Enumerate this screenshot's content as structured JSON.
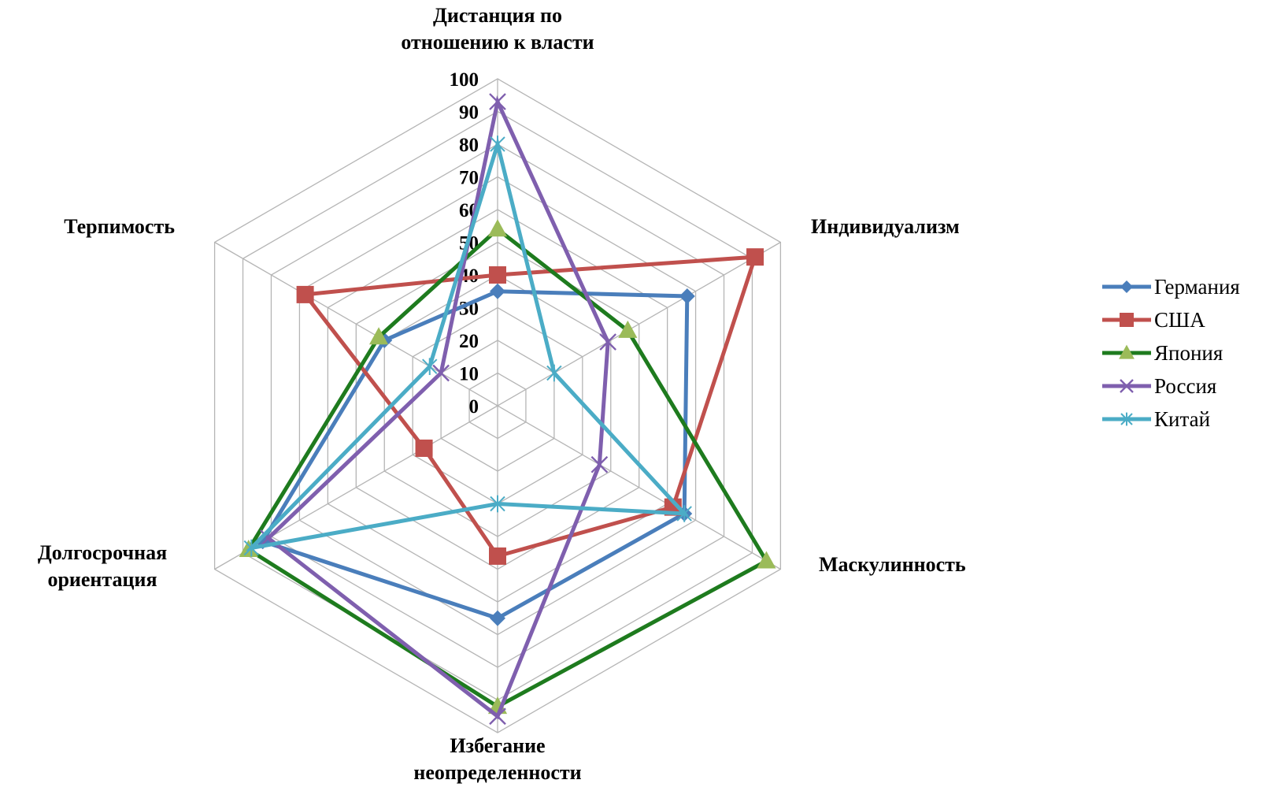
{
  "chart_data": {
    "type": "radar",
    "title": "",
    "axes": [
      {
        "label_lines": [
          "Дистанция по",
          "отношению к власти"
        ]
      },
      {
        "label_lines": [
          "Индивидуализм"
        ]
      },
      {
        "label_lines": [
          "Маскулинность"
        ]
      },
      {
        "label_lines": [
          "Избегание",
          "неопределенности"
        ]
      },
      {
        "label_lines": [
          "Долгосрочная",
          "ориентация"
        ]
      },
      {
        "label_lines": [
          "Терпимость"
        ]
      }
    ],
    "ticks": [
      0,
      10,
      20,
      30,
      40,
      50,
      60,
      70,
      80,
      90,
      100
    ],
    "tick_labels": [
      "0",
      "10",
      "20",
      "30",
      "40",
      "50",
      "60",
      "70",
      "80",
      "90",
      "100"
    ],
    "range": [
      0,
      100
    ],
    "grid": true,
    "legend_position": "right",
    "series": [
      {
        "name": "Германия",
        "color": "#4a7ebb",
        "marker": "diamond",
        "values": [
          35,
          67,
          66,
          65,
          83,
          40
        ]
      },
      {
        "name": "США",
        "color": "#c0504d",
        "marker": "square",
        "values": [
          40,
          91,
          62,
          46,
          26,
          68
        ]
      },
      {
        "name": "Япония",
        "color": "#1e7b1e",
        "marker_color": "#9bbb59",
        "marker": "triangle",
        "values": [
          54,
          46,
          95,
          92,
          88,
          42
        ]
      },
      {
        "name": "Россия",
        "color": "#7f5fae",
        "marker": "x",
        "values": [
          93,
          39,
          36,
          95,
          81,
          20
        ]
      },
      {
        "name": "Китай",
        "color": "#4bacc6",
        "marker": "asterisk",
        "values": [
          80,
          20,
          66,
          30,
          87,
          24
        ]
      }
    ]
  }
}
